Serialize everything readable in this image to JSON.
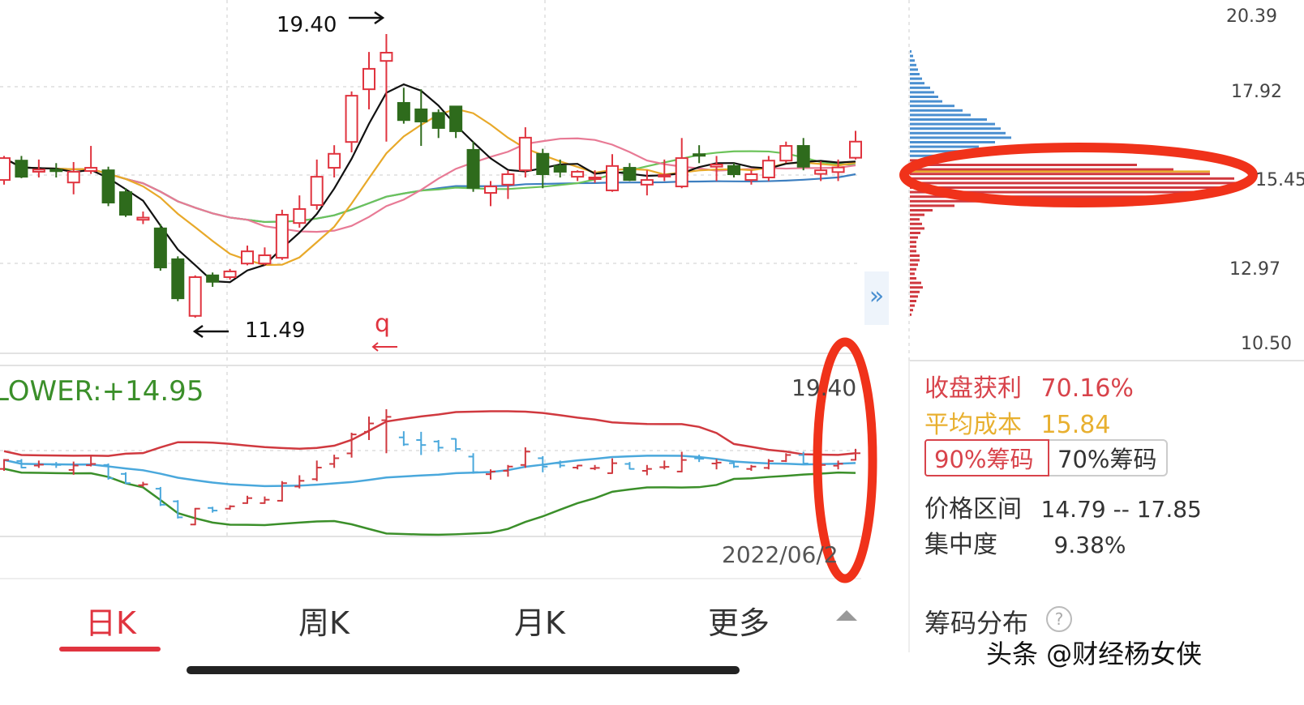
{
  "chart_data": [
    {
      "type": "candlestick",
      "title": "",
      "annotations": {
        "high_label": "19.40",
        "low_label": "11.49",
        "marker": "q"
      },
      "colors": {
        "up": "#e0343f",
        "down": "#2e6b1c",
        "ma5": "#111111",
        "ma10": "#e8a92a",
        "ma20": "#e87a95",
        "ma30": "#6cc35a",
        "ma60": "#3d7fc0"
      },
      "moving_averages": [
        "ma5",
        "ma10",
        "ma20",
        "ma30",
        "ma60"
      ],
      "ohlc": [
        [
          15.33,
          16.0,
          15.2,
          15.94
        ],
        [
          15.87,
          16.0,
          15.38,
          15.42
        ],
        [
          15.56,
          15.9,
          15.4,
          15.62
        ],
        [
          15.62,
          15.8,
          15.4,
          15.6
        ],
        [
          15.26,
          15.83,
          14.93,
          15.56
        ],
        [
          15.58,
          16.28,
          15.5,
          15.67
        ],
        [
          15.6,
          15.7,
          14.6,
          14.7
        ],
        [
          14.99,
          15.1,
          14.3,
          14.36
        ],
        [
          14.22,
          14.45,
          14.1,
          14.28
        ],
        [
          13.98,
          14.1,
          12.8,
          12.89
        ],
        [
          13.12,
          13.2,
          11.95,
          12.03
        ],
        [
          11.54,
          12.67,
          11.49,
          12.62
        ],
        [
          12.67,
          12.75,
          12.35,
          12.49
        ],
        [
          12.62,
          12.85,
          12.55,
          12.78
        ],
        [
          13.0,
          13.5,
          12.95,
          13.34
        ],
        [
          13.0,
          13.45,
          12.95,
          13.23
        ],
        [
          13.16,
          14.5,
          13.1,
          14.36
        ],
        [
          14.13,
          14.9,
          14.0,
          14.52
        ],
        [
          14.63,
          15.9,
          14.5,
          15.42
        ],
        [
          15.67,
          16.3,
          15.4,
          16.06
        ],
        [
          16.39,
          17.8,
          16.1,
          17.68
        ],
        [
          17.86,
          18.9,
          17.3,
          18.43
        ],
        [
          18.65,
          19.4,
          16.4,
          18.88
        ],
        [
          17.48,
          17.9,
          16.9,
          17.0
        ],
        [
          17.3,
          17.86,
          16.28,
          16.96
        ],
        [
          17.2,
          17.3,
          16.5,
          16.78
        ],
        [
          17.38,
          17.4,
          16.5,
          16.69
        ],
        [
          16.17,
          16.4,
          15.0,
          15.11
        ],
        [
          14.97,
          15.3,
          14.6,
          15.15
        ],
        [
          15.2,
          15.6,
          14.8,
          15.49
        ],
        [
          15.6,
          16.8,
          15.4,
          16.51
        ],
        [
          16.06,
          16.2,
          15.1,
          15.49
        ],
        [
          15.72,
          15.9,
          15.4,
          15.56
        ],
        [
          15.42,
          15.6,
          15.3,
          15.56
        ],
        [
          15.36,
          15.6,
          15.25,
          15.4
        ],
        [
          15.04,
          16.05,
          15.0,
          15.72
        ],
        [
          15.67,
          15.8,
          15.3,
          15.33
        ],
        [
          15.2,
          15.6,
          14.9,
          15.33
        ],
        [
          15.45,
          15.9,
          15.3,
          15.47
        ],
        [
          15.15,
          16.5,
          15.1,
          15.94
        ],
        [
          16.05,
          16.3,
          15.8,
          16.02
        ],
        [
          15.7,
          16.0,
          15.3,
          15.76
        ],
        [
          15.72,
          15.8,
          15.4,
          15.49
        ],
        [
          15.33,
          15.6,
          15.2,
          15.49
        ],
        [
          15.4,
          16.0,
          15.3,
          15.87
        ],
        [
          15.87,
          16.4,
          15.8,
          16.28
        ],
        [
          16.28,
          16.5,
          15.6,
          15.7
        ],
        [
          15.5,
          15.85,
          15.3,
          15.6
        ],
        [
          15.55,
          15.9,
          15.3,
          15.68
        ],
        [
          15.95,
          16.7,
          15.9,
          16.4
        ]
      ]
    },
    {
      "type": "line",
      "indicator": "BOLL",
      "legend": "LOWER:+14.95",
      "axis_top_label": "19.40",
      "date_label": "2022/06/2",
      "colors": {
        "upper": "#d0393f",
        "mid": "#4aa8dc",
        "lower": "#3b8f2a"
      }
    },
    {
      "type": "bar",
      "orientation": "horizontal",
      "title": "筹码分布",
      "y_tick_labels": [
        "20.39",
        "17.92",
        "15.45",
        "12.97",
        "10.50"
      ],
      "colors": {
        "profit": "#d0393f",
        "loss": "#4a8fd0",
        "avg_cost": "#e8a92a"
      },
      "loss_volumes": [
        2,
        4,
        6,
        8,
        10,
        12,
        15,
        18,
        25,
        30,
        35,
        40,
        55,
        65,
        75,
        95,
        105,
        112,
        118,
        125,
        105,
        85,
        65,
        40
      ],
      "avg_cost_volume": 370,
      "profit_volumes": [
        15,
        280,
        325,
        370,
        400,
        420,
        410,
        390,
        310,
        180,
        55,
        28,
        18,
        12,
        15,
        18,
        13,
        10,
        8,
        8,
        8,
        12,
        12,
        10,
        8,
        6,
        8,
        14,
        16,
        12,
        10,
        8,
        6,
        4,
        2
      ]
    }
  ],
  "chip_panel": {
    "profit_label": "收盘获利",
    "profit_value": "70.16%",
    "avg_cost_label": "平均成本",
    "avg_cost_value": "15.84",
    "btn_90": "90%筹码",
    "btn_70": "70%筹码",
    "range_label": "价格区间",
    "range_value": "14.79 -- 17.85",
    "concentration_label": "集中度",
    "concentration_value": "9.38%",
    "help_icon": "?"
  },
  "tabs": [
    {
      "label": "日K",
      "active": true
    },
    {
      "label": "周K",
      "active": false
    },
    {
      "label": "月K",
      "active": false
    },
    {
      "label": "更多",
      "active": false
    }
  ],
  "expand_icon": "»",
  "watermark": "头条 @财经杨女侠",
  "accent_color": "#e0343f"
}
